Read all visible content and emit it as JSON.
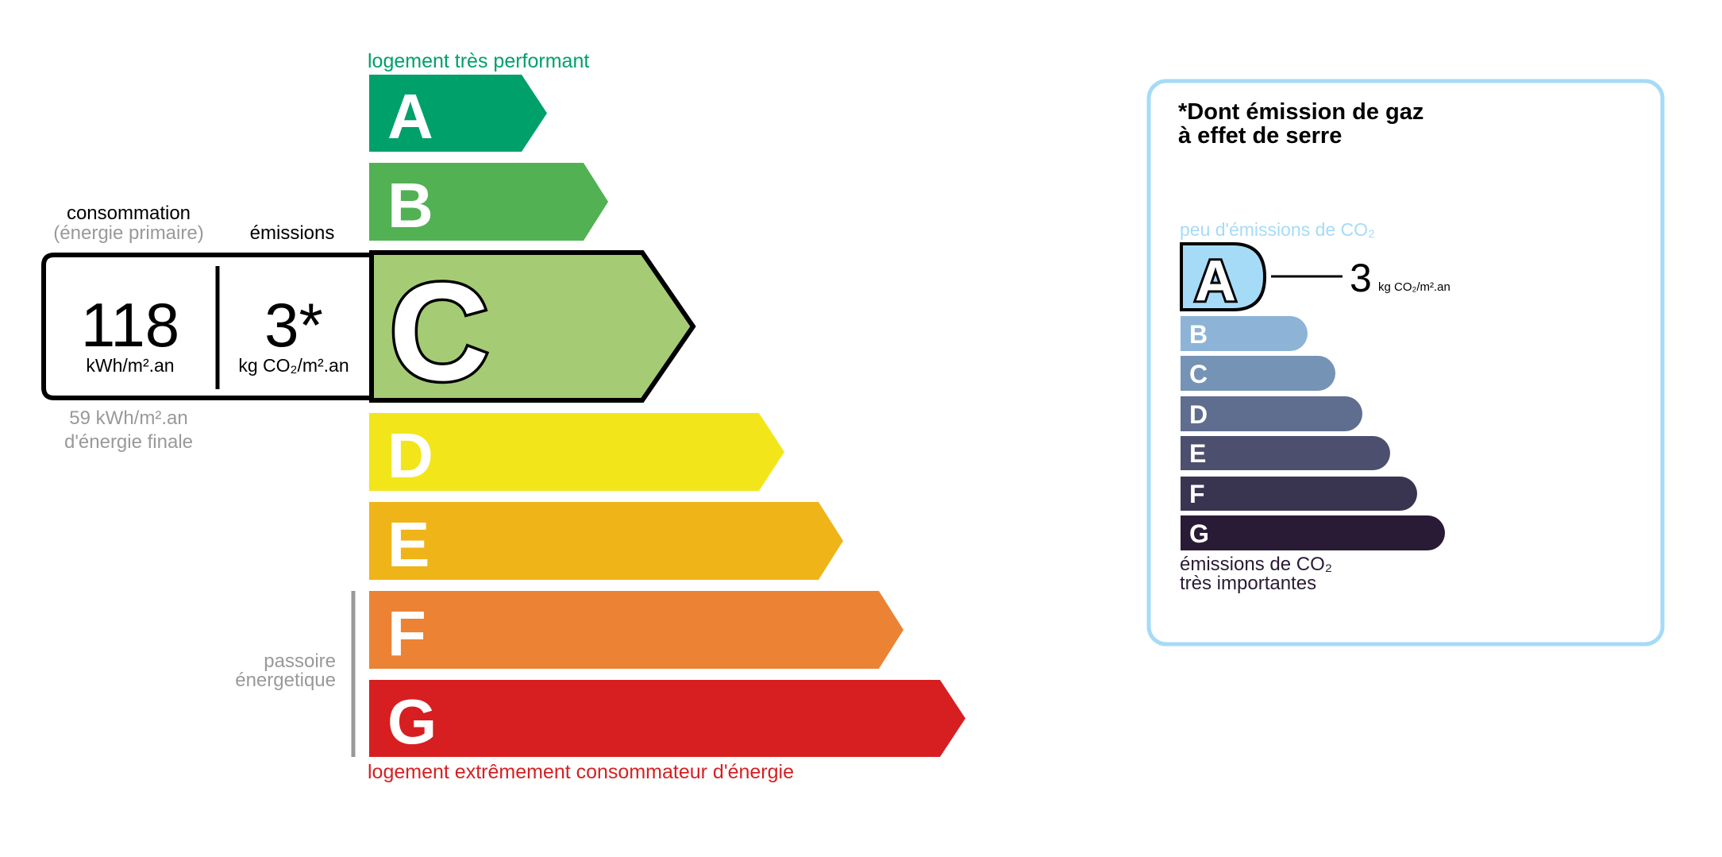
{
  "energy": {
    "top_label": "logement très performant",
    "bottom_label": "logement extrêmement consommateur d'énergie",
    "top_label_color": "#00a06b",
    "bottom_label_color": "#d71f21",
    "current_class": "C",
    "classes": [
      {
        "letter": "A",
        "color": "#00a06b"
      },
      {
        "letter": "B",
        "color": "#52b153"
      },
      {
        "letter": "C",
        "color": "#a5cc74"
      },
      {
        "letter": "D",
        "color": "#f2e61b"
      },
      {
        "letter": "E",
        "color": "#efb418"
      },
      {
        "letter": "F",
        "color": "#eb8234"
      },
      {
        "letter": "G",
        "color": "#d71f21"
      }
    ],
    "passoire_line1": "passoire",
    "passoire_line2": "énergetique"
  },
  "reading": {
    "consumption_title": "consommation",
    "consumption_subtitle": "(énergie primaire)",
    "emissions_title": "émissions",
    "consumption_value": "118",
    "consumption_unit": "kWh/m².an",
    "emissions_value": "3*",
    "emissions_unit": "kg CO₂/m².an",
    "final_energy_line1": "59 kWh/m².an",
    "final_energy_line2": "d'énergie finale"
  },
  "ghg": {
    "title_line1": "*Dont émission de gaz",
    "title_line2": "à effet de serre",
    "top_label": "peu d'émissions de CO₂",
    "bottom_line1": "émissions de CO₂",
    "bottom_line2": "très importantes",
    "current_class": "A",
    "value": "3",
    "unit": "kg CO₂/m².an",
    "border_color": "#a6dbf7",
    "classes": [
      {
        "letter": "A",
        "color": "#a6dbf7"
      },
      {
        "letter": "B",
        "color": "#8db4d6"
      },
      {
        "letter": "C",
        "color": "#7593b5"
      },
      {
        "letter": "D",
        "color": "#5f6d8f"
      },
      {
        "letter": "E",
        "color": "#4c506e"
      },
      {
        "letter": "F",
        "color": "#393551"
      },
      {
        "letter": "G",
        "color": "#291b35"
      }
    ]
  }
}
